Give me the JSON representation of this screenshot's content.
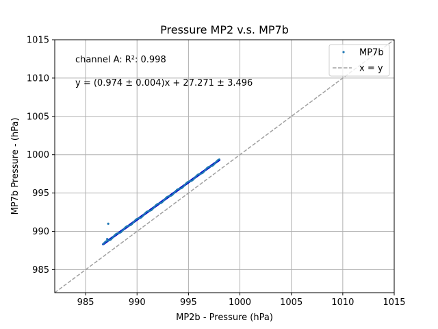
{
  "chart_data": {
    "type": "scatter",
    "title": "Pressure MP2 v.s. MP7b",
    "xlabel": "MP2b - Pressure (hPa)",
    "ylabel": "MP7b Pressure - (hPa)",
    "xlim": [
      982,
      1015
    ],
    "ylim": [
      982,
      1015
    ],
    "xticks": [
      985,
      990,
      995,
      1000,
      1005,
      1010,
      1015
    ],
    "yticks": [
      985,
      990,
      995,
      1000,
      1005,
      1010,
      1015
    ],
    "grid": true,
    "legend_position": "top-right",
    "annotations": [
      "channel A: R²: 0.998",
      "y = (0.974 ± 0.004)x + 27.271 ± 3.496"
    ],
    "series": [
      {
        "name": "MP7b",
        "kind": "scatter",
        "color": "#1f77b4",
        "fit_color": "#0000cc",
        "fit_slope": 0.974,
        "fit_intercept": 27.271,
        "x_range": [
          986.7,
          998.0
        ],
        "outliers": [
          {
            "x": 987.2,
            "y": 991.0
          },
          {
            "x": 987.1,
            "y": 989.0
          }
        ]
      },
      {
        "name": "x = y",
        "kind": "line",
        "color": "#a0a0a0",
        "dashed": true
      }
    ]
  }
}
